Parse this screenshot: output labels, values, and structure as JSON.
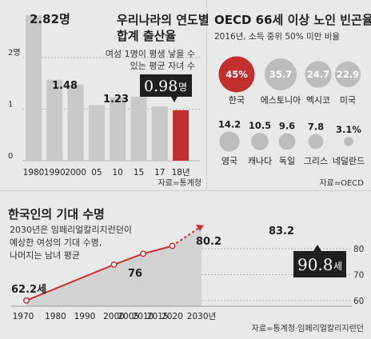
{
  "colors": {
    "bar": "#c9c9c9",
    "bar_highlight": "#c0302e",
    "oecd_korea": "#c0302e",
    "oecd_other": "#bdbdbd",
    "area": "#d2d2d2",
    "line": "#c8302e",
    "callout_bg": "#1f1f1f"
  },
  "fertility": {
    "title_line1": "우리나라의 연도별",
    "title_line2": "합계 출산율",
    "subtitle_line1": "여성 1명이 평생 낳을 수",
    "subtitle_line2": "있는 평균 자녀 수",
    "source": "자료=통계청",
    "first_label": "2.82명",
    "highlight_value": "0.98",
    "highlight_unit": "명",
    "value_labels": {
      "1990": "",
      "2000": "1.48",
      "10": "1.23"
    },
    "callout_icon": "pointer-triangle-icon"
  },
  "oecd": {
    "title": "OECD 66세 이상 노인 빈곤율",
    "subtitle": "2016년, 소득 중위 50% 미만 비율",
    "source": "자료=OECD"
  },
  "life": {
    "title": "한국인의 기대 수명",
    "note_line1": "2030년은 임페리얼칼리지런던이",
    "note_line2": "예상한 여성의 기대 수명,",
    "note_line3": "나머지는 남녀 평균",
    "source": "자료=통계청·임페리얼칼리지런던",
    "callout_value": "90.8",
    "callout_unit": "세",
    "point_labels": [
      "62.2세",
      "76",
      "80.2",
      "83.2"
    ]
  },
  "chart_data": [
    {
      "type": "bar",
      "title": "우리나라의 연도별 합계 출산율",
      "categories": [
        "1980",
        "1990",
        "2000",
        "05",
        "10",
        "15",
        "17",
        "18년"
      ],
      "values": [
        2.82,
        1.57,
        1.48,
        1.08,
        1.23,
        1.24,
        1.05,
        0.98
      ],
      "yticks": [
        "0",
        "1",
        "2명"
      ],
      "ylim": [
        0,
        3
      ],
      "grid": true
    },
    {
      "type": "scatter",
      "title": "OECD 66세 이상 노인 빈곤율",
      "categories": [
        "한국",
        "에스토니아",
        "멕시코",
        "미국",
        "영국",
        "캐나다",
        "독일",
        "그리스",
        "네덜란드"
      ],
      "values": [
        45,
        35.7,
        24.7,
        22.9,
        14.2,
        10.5,
        9.6,
        7.8,
        3.1
      ],
      "labels": [
        "45%",
        "35.7",
        "24.7",
        "22.9",
        "14.2",
        "10.5",
        "9.6",
        "7.8",
        "3.1%"
      ]
    },
    {
      "type": "area",
      "title": "한국인의 기대 수명",
      "x": [
        "1970",
        "1980",
        "1990",
        "2000",
        "2005",
        "2010",
        "2015",
        "2020",
        "2030년"
      ],
      "points": [
        {
          "x": 1970,
          "y": 62.2
        },
        {
          "x": 2000,
          "y": 76
        },
        {
          "x": 2010,
          "y": 80.2
        },
        {
          "x": 2020,
          "y": 83.2
        },
        {
          "x": 2030,
          "y": 90.8
        }
      ],
      "yticks": [
        "60",
        "70",
        "80"
      ],
      "ylim": [
        60,
        90
      ],
      "grid": true
    }
  ]
}
